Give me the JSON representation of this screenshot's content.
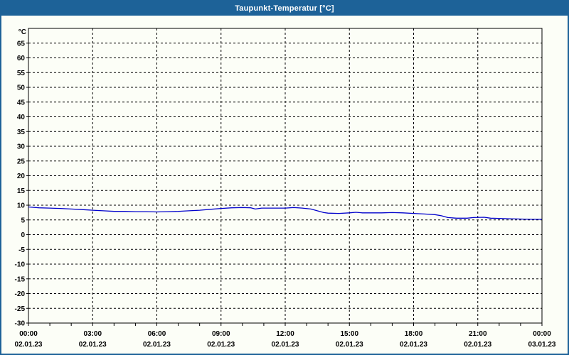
{
  "window": {
    "title": "Taupunkt-Temperatur [°C]",
    "titlebar_color": "#1d6298",
    "border_color": "#1d6298",
    "background_color": "#fcfef7"
  },
  "chart_data": {
    "type": "line",
    "title": "Taupunkt-Temperatur [°C]",
    "ylabel_unit": "°C",
    "ylim": [
      -30,
      70
    ],
    "ytick_step": 5,
    "ytick_labels": [
      -30,
      -25,
      -20,
      -15,
      -10,
      -5,
      0,
      5,
      10,
      15,
      20,
      25,
      30,
      35,
      40,
      45,
      50,
      55,
      60,
      65
    ],
    "grid": "dashed",
    "grid_color": "#000000",
    "line_color": "#0000cc",
    "x_axis": {
      "hours_span": 24,
      "major_step_hours": 3,
      "minor_step_hours": 1,
      "tick_times": [
        "00:00",
        "03:00",
        "06:00",
        "09:00",
        "12:00",
        "15:00",
        "18:00",
        "21:00",
        "00:00"
      ],
      "tick_dates": [
        "02.01.23",
        "02.01.23",
        "02.01.23",
        "02.01.23",
        "02.01.23",
        "02.01.23",
        "02.01.23",
        "02.01.23",
        "03.01.23"
      ]
    },
    "series": [
      {
        "name": "Taupunkt-Temperatur [°C]",
        "points": [
          [
            0,
            9.4
          ],
          [
            0.5,
            9.1
          ],
          [
            1,
            9.0
          ],
          [
            1.5,
            8.9
          ],
          [
            2,
            8.7
          ],
          [
            2.5,
            8.5
          ],
          [
            3,
            8.3
          ],
          [
            3.5,
            8.1
          ],
          [
            4,
            7.9
          ],
          [
            4.5,
            7.9
          ],
          [
            5,
            7.8
          ],
          [
            5.5,
            7.8
          ],
          [
            6,
            7.7
          ],
          [
            6.5,
            7.8
          ],
          [
            7,
            7.9
          ],
          [
            7.5,
            8.1
          ],
          [
            8,
            8.3
          ],
          [
            8.5,
            8.6
          ],
          [
            9,
            8.9
          ],
          [
            9.5,
            9.1
          ],
          [
            10,
            9.2
          ],
          [
            10.4,
            9.1
          ],
          [
            10.6,
            8.7
          ],
          [
            10.9,
            9.0
          ],
          [
            11.5,
            9.0
          ],
          [
            12,
            9.0
          ],
          [
            12.4,
            9.2
          ],
          [
            12.8,
            9.0
          ],
          [
            13.2,
            8.7
          ],
          [
            13.5,
            8.1
          ],
          [
            13.8,
            7.5
          ],
          [
            14,
            7.3
          ],
          [
            14.5,
            7.2
          ],
          [
            15,
            7.4
          ],
          [
            15.3,
            7.6
          ],
          [
            15.6,
            7.4
          ],
          [
            16,
            7.4
          ],
          [
            16.5,
            7.4
          ],
          [
            17,
            7.5
          ],
          [
            17.5,
            7.4
          ],
          [
            18,
            7.2
          ],
          [
            18.5,
            7.0
          ],
          [
            19,
            6.8
          ],
          [
            19.3,
            6.4
          ],
          [
            19.6,
            5.8
          ],
          [
            20,
            5.6
          ],
          [
            20.5,
            5.6
          ],
          [
            20.8,
            5.8
          ],
          [
            21.3,
            5.9
          ],
          [
            21.6,
            5.6
          ],
          [
            22,
            5.5
          ],
          [
            22.5,
            5.4
          ],
          [
            23,
            5.3
          ],
          [
            23.5,
            5.2
          ],
          [
            24,
            5.2
          ]
        ]
      }
    ]
  }
}
